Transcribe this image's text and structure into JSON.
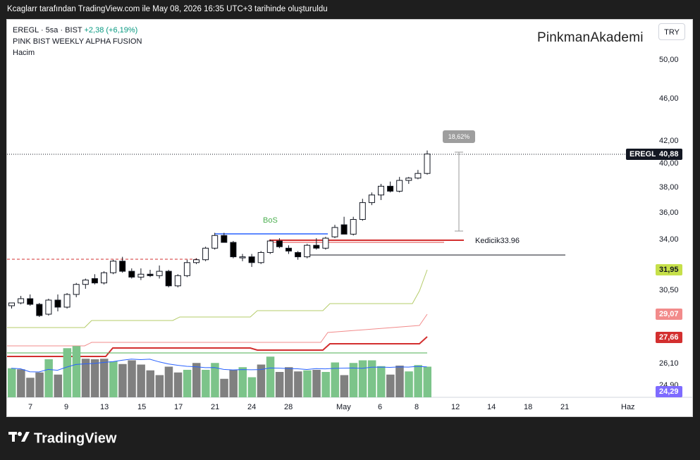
{
  "header": {
    "caption": "Kcaglarr tarafından TradingView.com ile May 08, 2026 16:35 UTC+3 tarihinde oluşturuldu"
  },
  "legend": {
    "symbol": "EREGL · 5sa · BIST",
    "change": "+2,38 (+6,19%)",
    "indicator": "PINK BIST WEEKLY ALPHA FUSION",
    "volume": "Hacim"
  },
  "brand": "PinkmanAkademi",
  "currency": "TRY",
  "price_axis": [
    "50,00",
    "46,00",
    "42,00",
    "40,00",
    "38,00",
    "36,00",
    "34,00",
    "30,50",
    "26,10",
    "24,90"
  ],
  "price_tags": {
    "symbol": "EREGL",
    "last": "40,88",
    "green": "31,95",
    "pink": "29,07",
    "red": "27,66",
    "purple": "24,29"
  },
  "annotations": {
    "bos": "BoS",
    "kedicik": "Kedicik33.96",
    "measure": "18,62%"
  },
  "time_axis": [
    "7",
    "9",
    "13",
    "15",
    "17",
    "21",
    "24",
    "28",
    "May",
    "6",
    "8",
    "12",
    "14",
    "18",
    "21",
    "Haz"
  ],
  "colors": {
    "bull": "#ffffff",
    "bear": "#000000",
    "vol_up": "#7cc48a",
    "vol_down": "#808080",
    "green_line": "#b5cc6a",
    "pink_line": "#f28b8b",
    "red_line": "#d32f2f",
    "blue_line": "#2962ff",
    "pill_green": "#c6e04a",
    "pill_pink": "#f28b8b",
    "pill_red": "#d32f2f",
    "pill_purple": "#7e6bff"
  },
  "chart_data": {
    "type": "candlestick",
    "ylim": [
      24.0,
      52.0
    ],
    "candles": [
      [
        29.4,
        29.6,
        29.2,
        29.6
      ],
      [
        29.6,
        30.1,
        29.5,
        29.9
      ],
      [
        29.9,
        30.2,
        29.4,
        29.5
      ],
      [
        29.5,
        29.6,
        28.6,
        28.7
      ],
      [
        28.8,
        29.9,
        28.7,
        29.8
      ],
      [
        29.8,
        30.2,
        29.0,
        29.3
      ],
      [
        29.3,
        30.3,
        29.2,
        30.2
      ],
      [
        30.2,
        31.0,
        30.0,
        30.9
      ],
      [
        30.9,
        31.3,
        30.6,
        31.2
      ],
      [
        31.3,
        31.6,
        30.9,
        31.0
      ],
      [
        31.0,
        31.8,
        30.9,
        31.7
      ],
      [
        31.7,
        32.6,
        31.6,
        32.5
      ],
      [
        32.5,
        32.8,
        31.7,
        31.8
      ],
      [
        31.8,
        32.0,
        31.3,
        31.4
      ],
      [
        31.4,
        32.0,
        31.2,
        31.6
      ],
      [
        31.6,
        31.9,
        31.4,
        31.5
      ],
      [
        31.5,
        32.2,
        31.3,
        31.8
      ],
      [
        31.8,
        31.9,
        30.7,
        30.8
      ],
      [
        30.8,
        31.6,
        30.7,
        31.5
      ],
      [
        31.5,
        32.6,
        31.4,
        32.4
      ],
      [
        32.4,
        32.7,
        32.3,
        32.6
      ],
      [
        32.6,
        33.5,
        32.5,
        33.4
      ],
      [
        33.4,
        34.5,
        33.3,
        34.3
      ],
      [
        34.3,
        34.5,
        33.8,
        33.8
      ],
      [
        33.8,
        33.9,
        32.7,
        32.8
      ],
      [
        32.8,
        33.0,
        32.5,
        32.8
      ],
      [
        32.8,
        33.0,
        32.1,
        32.4
      ],
      [
        32.4,
        33.2,
        32.3,
        33.1
      ],
      [
        33.1,
        34.0,
        33.0,
        33.9
      ],
      [
        33.9,
        34.1,
        33.4,
        33.5
      ],
      [
        33.4,
        33.6,
        33.0,
        33.2
      ],
      [
        33.1,
        33.2,
        32.6,
        32.8
      ],
      [
        32.8,
        33.7,
        32.7,
        33.6
      ],
      [
        33.6,
        34.1,
        33.3,
        33.4
      ],
      [
        33.4,
        34.2,
        33.3,
        34.1
      ],
      [
        34.2,
        35.1,
        34.1,
        34.9
      ],
      [
        35.1,
        35.7,
        34.5,
        34.4
      ],
      [
        34.4,
        35.7,
        34.3,
        35.5
      ],
      [
        35.5,
        37.1,
        35.4,
        36.8
      ],
      [
        36.8,
        37.6,
        36.6,
        37.4
      ],
      [
        37.4,
        38.3,
        37.0,
        38.1
      ],
      [
        38.1,
        38.5,
        37.6,
        37.7
      ],
      [
        37.7,
        38.9,
        37.6,
        38.6
      ],
      [
        38.6,
        38.9,
        38.3,
        38.8
      ],
      [
        38.8,
        39.5,
        38.7,
        39.2
      ],
      [
        39.2,
        41.2,
        39.1,
        40.9
      ]
    ],
    "volume_up": [
      true,
      false,
      false,
      false,
      true,
      false,
      true,
      true,
      false,
      false,
      false,
      true,
      false,
      false,
      false,
      false,
      false,
      false,
      false,
      true,
      false,
      true,
      true,
      false,
      false,
      true,
      true,
      false,
      true,
      false,
      false,
      false,
      true,
      false,
      true,
      true,
      false,
      true,
      true,
      true,
      true,
      false,
      false,
      true,
      true,
      true
    ],
    "volume": [
      0.55,
      0.53,
      0.37,
      0.47,
      0.72,
      0.43,
      0.93,
      0.97,
      0.73,
      0.72,
      0.73,
      0.68,
      0.63,
      0.7,
      0.62,
      0.51,
      0.42,
      0.58,
      0.47,
      0.52,
      0.65,
      0.52,
      0.65,
      0.35,
      0.52,
      0.57,
      0.38,
      0.62,
      0.77,
      0.48,
      0.57,
      0.49,
      0.51,
      0.52,
      0.48,
      0.66,
      0.42,
      0.65,
      0.7,
      0.7,
      0.59,
      0.43,
      0.6,
      0.49,
      0.61,
      0.58
    ]
  }
}
